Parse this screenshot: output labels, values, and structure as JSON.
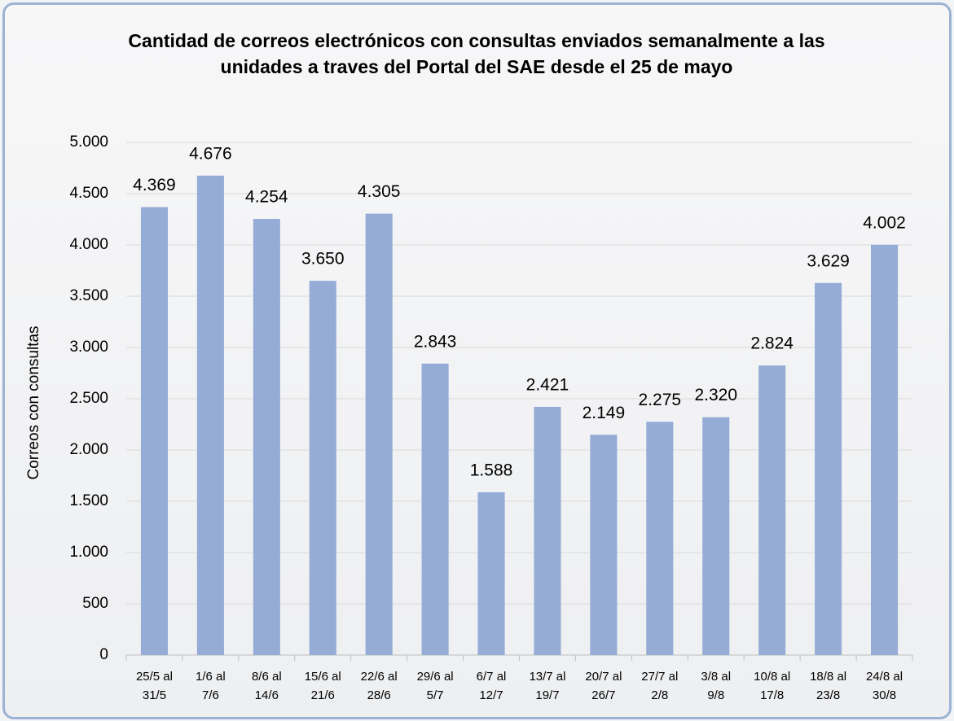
{
  "chart_data": {
    "type": "bar",
    "title": "Cantidad de correos electrónicos con consultas enviados semanalmente a las unidades a traves del Portal del SAE desde el 25 de mayo",
    "y_label": "Correos con consultas",
    "categories": [
      "25/5 al 31/5",
      "1/6 al 7/6",
      "8/6 al 14/6",
      "15/6 al 21/6",
      "22/6 al 28/6",
      "29/6 al 5/7",
      "6/7 al 12/7",
      "13/7 al 19/7",
      "20/7 al 26/7",
      "27/7 al 2/8",
      "3/8 al 9/8",
      "10/8 al 17/8",
      "18/8 al 23/8",
      "24/8 al 30/8"
    ],
    "values": [
      4369,
      4676,
      4254,
      3650,
      4305,
      2843,
      1588,
      2421,
      2149,
      2275,
      2320,
      2824,
      3629,
      4002
    ],
    "value_labels": [
      "4.369",
      "4.676",
      "4.254",
      "3.650",
      "4.305",
      "2.843",
      "1.588",
      "2.421",
      "2.149",
      "2.275",
      "2.320",
      "2.824",
      "3.629",
      "4.002"
    ],
    "color": "#94acd6",
    "ylim": [
      0,
      5000
    ],
    "yticks": [
      0,
      500,
      {
        "value": 1000,
        "label": "1.000"
      },
      {
        "value": 1500,
        "label": "1.500"
      },
      {
        "value": 2000,
        "label": "2.000"
      },
      {
        "value": 2500,
        "label": "2.500"
      },
      {
        "value": 3000,
        "label": "3.000"
      },
      {
        "value": 3500,
        "label": "3.500"
      },
      {
        "value": 4000,
        "label": "4.000"
      },
      {
        "value": 4500,
        "label": "4.500"
      },
      {
        "value": 5000,
        "label": "5.000"
      }
    ],
    "grid": true
  }
}
